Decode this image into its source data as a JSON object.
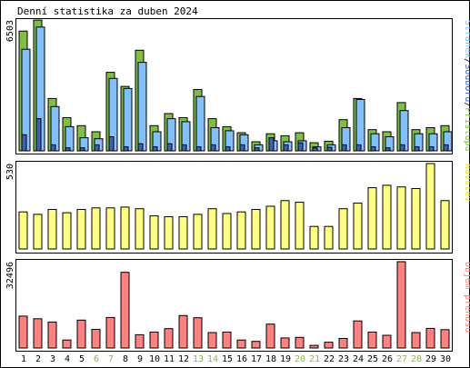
{
  "title": "Denní statistika za duben 2024",
  "colors": {
    "background": "#ffffff",
    "border": "#000000",
    "grid": "#cccccc",
    "access": "#80c040",
    "pages": "#80c0ff",
    "files": "#4060c0",
    "visits": "#ffff80",
    "volume": "#ff8080",
    "weekend_label": "#80c040",
    "normal_label": "#000000"
  },
  "chart_data": [
    {
      "type": "bar",
      "name": "hits-panel",
      "ymax_label": "6503",
      "ymax": 6503,
      "legend": {
        "access": "Přístupů",
        "files": "Souborů",
        "pages": "Stránek",
        "separator": "/"
      },
      "categories": [
        "1",
        "2",
        "3",
        "4",
        "5",
        "6",
        "7",
        "8",
        "9",
        "10",
        "11",
        "12",
        "13",
        "14",
        "15",
        "16",
        "17",
        "18",
        "19",
        "20",
        "21",
        "22",
        "23",
        "24",
        "25",
        "26",
        "27",
        "28",
        "29",
        "30"
      ],
      "weekend_days": [
        "6",
        "7",
        "13",
        "14",
        "20",
        "21",
        "27",
        "28"
      ],
      "series": [
        {
          "name": "Přístupů",
          "key": "access",
          "values": [
            5950,
            6500,
            2600,
            1650,
            1250,
            950,
            3900,
            3200,
            5000,
            1250,
            1850,
            1650,
            3050,
            1600,
            1200,
            900,
            450,
            850,
            750,
            900,
            400,
            480,
            1550,
            2600,
            1050,
            950,
            2400,
            1050,
            1150,
            1250
          ]
        },
        {
          "name": "Souborů",
          "key": "files",
          "values": [
            800,
            1600,
            300,
            150,
            150,
            300,
            700,
            200,
            350,
            200,
            350,
            300,
            200,
            300,
            200,
            300,
            150,
            650,
            300,
            400,
            150,
            180,
            300,
            300,
            200,
            150,
            300,
            200,
            200,
            300
          ]
        },
        {
          "name": "Stránek",
          "key": "pages",
          "values": [
            5050,
            6150,
            2200,
            1200,
            650,
            600,
            3600,
            3100,
            4400,
            950,
            1600,
            1450,
            2700,
            1150,
            1000,
            800,
            300,
            500,
            450,
            500,
            200,
            300,
            1150,
            2550,
            850,
            700,
            2000,
            850,
            850,
            950
          ]
        }
      ]
    },
    {
      "type": "bar",
      "name": "visits-panel",
      "ymax_label": "530",
      "ymax": 530,
      "legend": "Návštěv",
      "categories": [
        "1",
        "2",
        "3",
        "4",
        "5",
        "6",
        "7",
        "8",
        "9",
        "10",
        "11",
        "12",
        "13",
        "14",
        "15",
        "16",
        "17",
        "18",
        "19",
        "20",
        "21",
        "22",
        "23",
        "24",
        "25",
        "26",
        "27",
        "28",
        "29",
        "30"
      ],
      "series": [
        {
          "name": "Návštěv",
          "key": "visits",
          "values": [
            230,
            215,
            245,
            225,
            245,
            255,
            255,
            260,
            250,
            205,
            200,
            200,
            215,
            250,
            220,
            230,
            245,
            265,
            300,
            290,
            140,
            140,
            250,
            285,
            380,
            395,
            385,
            375,
            530,
            300
          ]
        }
      ]
    },
    {
      "type": "bar",
      "name": "volume-panel",
      "ymax_label": "32496",
      "ymax": 32496,
      "legend": "Objem přenosu",
      "categories": [
        "1",
        "2",
        "3",
        "4",
        "5",
        "6",
        "7",
        "8",
        "9",
        "10",
        "11",
        "12",
        "13",
        "14",
        "15",
        "16",
        "17",
        "18",
        "19",
        "20",
        "21",
        "22",
        "23",
        "24",
        "25",
        "26",
        "27",
        "28",
        "29",
        "30"
      ],
      "series": [
        {
          "name": "Objem přenosu",
          "key": "volume",
          "values": [
            12000,
            11000,
            9800,
            3000,
            10500,
            7000,
            11500,
            28500,
            5000,
            6000,
            7300,
            12200,
            11400,
            5800,
            6000,
            3000,
            2500,
            9000,
            3800,
            4000,
            1000,
            2200,
            3600,
            10200,
            6000,
            4800,
            32496,
            5800,
            7400,
            6900
          ]
        }
      ]
    }
  ]
}
